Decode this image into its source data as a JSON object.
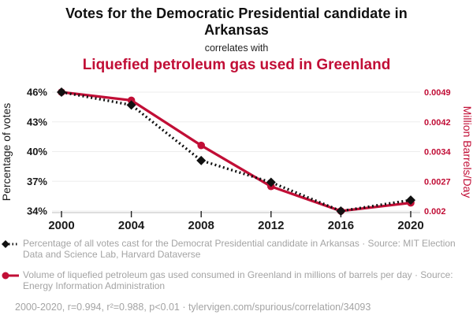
{
  "header": {
    "title": "Votes for the Democratic Presidential candidate in Arkansas",
    "subtitle": "correlates with",
    "title2": "Liquefied petroleum gas used in Greenland"
  },
  "chart_data": {
    "type": "line",
    "x": [
      2000,
      2004,
      2008,
      2012,
      2016,
      2020
    ],
    "x_ticks": [
      "2000",
      "2004",
      "2008",
      "2012",
      "2016",
      "2020"
    ],
    "series": [
      {
        "name": "Percentage of all votes cast for the Democrat Presidential candidate in Arkansas · Source: MIT Election Data and Science Lab, Harvard Dataverse",
        "axis": "left",
        "color": "#111111",
        "style": "dotted",
        "marker": "diamond",
        "values": [
          46.0,
          44.7,
          39.1,
          36.9,
          34.0,
          35.1
        ]
      },
      {
        "name": "Volume of liquefied petroleum gas used consumed in Greenland in millions of barrels per day · Source: Energy Information Administration",
        "axis": "right",
        "color": "#c10e36",
        "style": "solid",
        "marker": "circle",
        "values": [
          0.0049,
          0.0047,
          0.0036,
          0.0026,
          0.002,
          0.0022
        ]
      }
    ],
    "left_axis": {
      "label": "Percentage of votes",
      "ticks": [
        "46%",
        "43%",
        "40%",
        "37%",
        "34%"
      ],
      "tick_values": [
        46,
        43,
        40,
        37,
        34
      ],
      "min": 34,
      "max": 46
    },
    "right_axis": {
      "label": "Million Barrels/Day",
      "ticks": [
        "0.0049",
        "0.0042",
        "0.0034",
        "0.0027",
        "0.002"
      ],
      "tick_values": [
        0.0049,
        0.0042,
        0.0034,
        0.0027,
        0.002
      ],
      "min": 0.002,
      "max": 0.0049
    },
    "grid": true,
    "legend_position": "bottom"
  },
  "footer": {
    "caption": "2000-2020, r=0.994, r²=0.988, p<0.01 · tylervigen.com/spurious/correlation/34093"
  },
  "colors": {
    "accent_red": "#c10e36",
    "series_black": "#111111",
    "legend_gray": "#a4a4a4",
    "gridline": "#ededed"
  }
}
